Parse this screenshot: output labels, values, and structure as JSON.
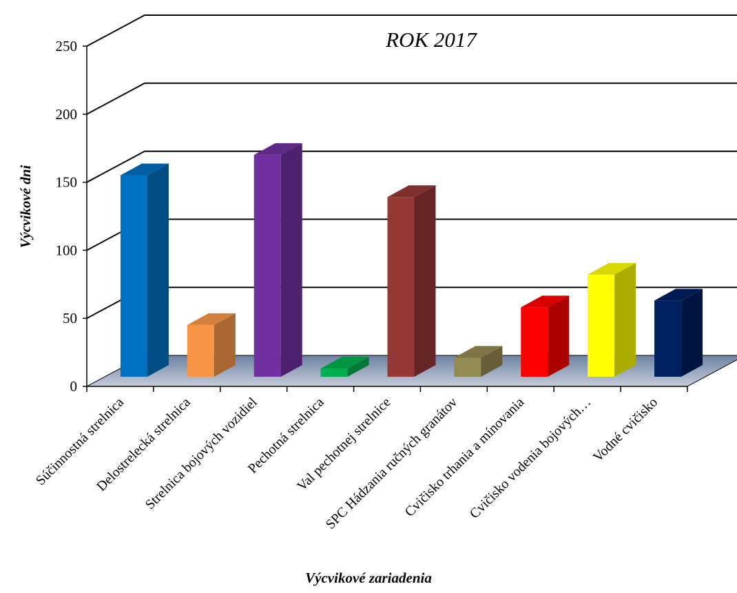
{
  "chart_data": {
    "type": "bar",
    "title": "ROK  2017",
    "xlabel": "Výcvikové zariadenia",
    "ylabel": "Výcvikové  dni",
    "ylim": [
      0,
      250
    ],
    "yticks": [
      0,
      50,
      100,
      150,
      200,
      250
    ],
    "grid": true,
    "style": "3d-column",
    "categories": [
      "Súčinnostná strelnica",
      "Delostrelecká strelnica",
      "Strelnica bojových vozidiel",
      "Pechotná strelnica",
      "Val pechotnej strelnice",
      "SPC Hádzania ručných granátov",
      "Cvičisko trhania a mínovania",
      "Cvičisko vodenia bojových…",
      "Vodné cvičisko"
    ],
    "values": [
      148,
      38,
      163,
      6,
      132,
      14,
      51,
      75,
      56
    ],
    "colors": [
      "#0070C0",
      "#F79646",
      "#7030A0",
      "#00B050",
      "#953735",
      "#948A54",
      "#FF0000",
      "#FFFF00",
      "#002060"
    ]
  }
}
